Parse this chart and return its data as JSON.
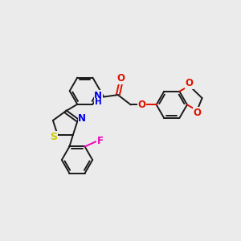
{
  "background_color": "#ebebeb",
  "bond_color": "#1a1a1a",
  "N_color": "#0000ee",
  "O_color": "#dd1100",
  "S_color": "#cccc00",
  "F_color": "#ee00bb",
  "figsize": [
    3.0,
    3.0
  ],
  "dpi": 100,
  "xlim": [
    0,
    12
  ],
  "ylim": [
    0,
    12
  ]
}
